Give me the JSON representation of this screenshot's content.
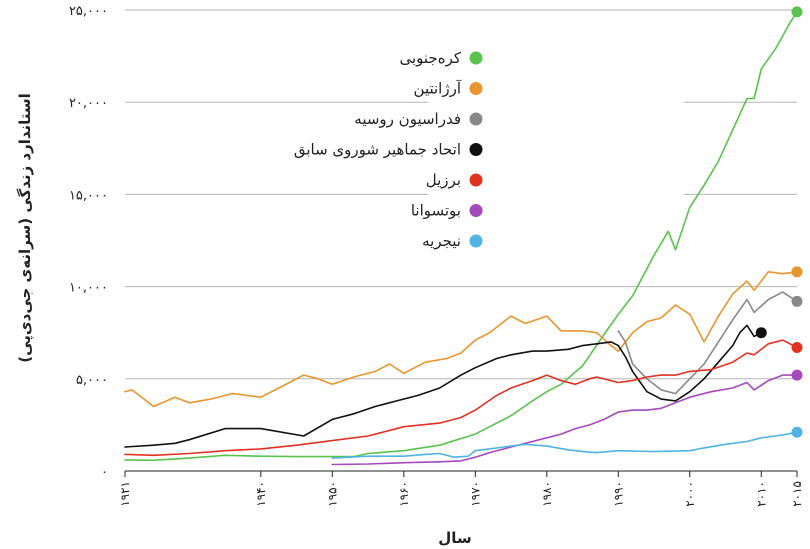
{
  "chart_data": {
    "type": "line",
    "xlabel": "سال",
    "ylabel": "استاندارد زندگی (سرانه‌ی جی‌دی‌پی)",
    "xlim": [
      1921,
      2015
    ],
    "ylim": [
      0,
      25000
    ],
    "x_ticks": [
      1921,
      1940,
      1950,
      1960,
      1970,
      1980,
      1990,
      2000,
      2010,
      2015
    ],
    "x_tick_labels": [
      "۱۹۲۱",
      "۱۹۴۰",
      "۱۹۵۰",
      "۱۹۶۰",
      "۱۹۷۰",
      "۱۹۸۰",
      "۱۹۹۰",
      "۲۰۰۰",
      "۲۰۱۰",
      "۲۰۱۵"
    ],
    "y_ticks": [
      0,
      5000,
      10000,
      15000,
      20000,
      25000
    ],
    "y_tick_labels": [
      "۰",
      "۵,۰۰۰",
      "۱۰,۰۰۰",
      "۱۵,۰۰۰",
      "۲۰,۰۰۰",
      "۲۵,۰۰۰"
    ],
    "grid": "horizontal",
    "legend_position": "top-center",
    "series": [
      {
        "name": "کره‌جنوبی",
        "color": "#5ac24e",
        "points": [
          [
            1921,
            600
          ],
          [
            1925,
            580
          ],
          [
            1930,
            700
          ],
          [
            1935,
            850
          ],
          [
            1940,
            800
          ],
          [
            1945,
            780
          ],
          [
            1950,
            780
          ],
          [
            1953,
            780
          ],
          [
            1955,
            950
          ],
          [
            1960,
            1100
          ],
          [
            1965,
            1400
          ],
          [
            1970,
            2000
          ],
          [
            1973,
            2600
          ],
          [
            1975,
            3000
          ],
          [
            1978,
            3800
          ],
          [
            1980,
            4300
          ],
          [
            1982,
            4700
          ],
          [
            1985,
            5700
          ],
          [
            1988,
            7400
          ],
          [
            1990,
            8500
          ],
          [
            1992,
            9500
          ],
          [
            1995,
            11700
          ],
          [
            1997,
            13000
          ],
          [
            1998,
            12000
          ],
          [
            2000,
            14300
          ],
          [
            2002,
            15500
          ],
          [
            2004,
            16800
          ],
          [
            2006,
            18500
          ],
          [
            2008,
            20200
          ],
          [
            2009,
            20200
          ],
          [
            2010,
            21800
          ],
          [
            2012,
            22900
          ],
          [
            2014,
            24300
          ],
          [
            2015,
            24900
          ]
        ]
      },
      {
        "name": "آرژانتین",
        "color": "#e8952f",
        "points": [
          [
            1921,
            4300
          ],
          [
            1922,
            4400
          ],
          [
            1925,
            3500
          ],
          [
            1928,
            4000
          ],
          [
            1930,
            3700
          ],
          [
            1933,
            3900
          ],
          [
            1936,
            4200
          ],
          [
            1940,
            4000
          ],
          [
            1944,
            4800
          ],
          [
            1946,
            5200
          ],
          [
            1948,
            5000
          ],
          [
            1950,
            4700
          ],
          [
            1953,
            5100
          ],
          [
            1956,
            5400
          ],
          [
            1958,
            5800
          ],
          [
            1960,
            5300
          ],
          [
            1963,
            5900
          ],
          [
            1966,
            6100
          ],
          [
            1968,
            6400
          ],
          [
            1970,
            7100
          ],
          [
            1972,
            7500
          ],
          [
            1975,
            8400
          ],
          [
            1977,
            8000
          ],
          [
            1980,
            8400
          ],
          [
            1982,
            7600
          ],
          [
            1985,
            7600
          ],
          [
            1987,
            7500
          ],
          [
            1989,
            6800
          ],
          [
            1990,
            6500
          ],
          [
            1992,
            7500
          ],
          [
            1994,
            8100
          ],
          [
            1996,
            8300
          ],
          [
            1998,
            9000
          ],
          [
            2000,
            8500
          ],
          [
            2002,
            7000
          ],
          [
            2004,
            8400
          ],
          [
            2006,
            9600
          ],
          [
            2008,
            10300
          ],
          [
            2009,
            9800
          ],
          [
            2011,
            10800
          ],
          [
            2013,
            10700
          ],
          [
            2015,
            10800
          ]
        ]
      },
      {
        "name": "فدراسیون روسیه",
        "color": "#888888",
        "points": [
          [
            1990,
            7600
          ],
          [
            1991,
            7000
          ],
          [
            1992,
            5800
          ],
          [
            1994,
            5000
          ],
          [
            1996,
            4400
          ],
          [
            1998,
            4200
          ],
          [
            2000,
            5000
          ],
          [
            2002,
            5800
          ],
          [
            2004,
            7000
          ],
          [
            2006,
            8200
          ],
          [
            2008,
            9300
          ],
          [
            2009,
            8600
          ],
          [
            2011,
            9300
          ],
          [
            2013,
            9700
          ],
          [
            2015,
            9200
          ]
        ]
      },
      {
        "name": "اتحاد جماهیر شوروی سابق",
        "color": "#111111",
        "points": [
          [
            1921,
            1300
          ],
          [
            1925,
            1400
          ],
          [
            1928,
            1500
          ],
          [
            1930,
            1700
          ],
          [
            1935,
            2300
          ],
          [
            1940,
            2300
          ],
          [
            1946,
            1900
          ],
          [
            1950,
            2800
          ],
          [
            1953,
            3100
          ],
          [
            1956,
            3500
          ],
          [
            1959,
            3800
          ],
          [
            1962,
            4100
          ],
          [
            1965,
            4500
          ],
          [
            1968,
            5200
          ],
          [
            1970,
            5600
          ],
          [
            1973,
            6100
          ],
          [
            1975,
            6300
          ],
          [
            1978,
            6500
          ],
          [
            1980,
            6500
          ],
          [
            1983,
            6600
          ],
          [
            1985,
            6800
          ],
          [
            1987,
            6900
          ],
          [
            1989,
            7000
          ],
          [
            1990,
            6800
          ],
          [
            1991,
            6200
          ],
          [
            1992,
            5400
          ],
          [
            1994,
            4300
          ],
          [
            1996,
            3900
          ],
          [
            1998,
            3800
          ],
          [
            2000,
            4300
          ],
          [
            2002,
            5000
          ],
          [
            2004,
            5900
          ],
          [
            2006,
            6800
          ],
          [
            2007,
            7500
          ],
          [
            2008,
            7900
          ],
          [
            2009,
            7300
          ],
          [
            2010,
            7500
          ]
        ]
      },
      {
        "name": "برزیل",
        "color": "#e23222",
        "points": [
          [
            1921,
            900
          ],
          [
            1925,
            850
          ],
          [
            1930,
            950
          ],
          [
            1935,
            1100
          ],
          [
            1940,
            1200
          ],
          [
            1945,
            1400
          ],
          [
            1950,
            1650
          ],
          [
            1955,
            1900
          ],
          [
            1960,
            2400
          ],
          [
            1965,
            2600
          ],
          [
            1968,
            2900
          ],
          [
            1970,
            3300
          ],
          [
            1973,
            4100
          ],
          [
            1975,
            4500
          ],
          [
            1978,
            4900
          ],
          [
            1980,
            5200
          ],
          [
            1982,
            4900
          ],
          [
            1984,
            4700
          ],
          [
            1986,
            5000
          ],
          [
            1987,
            5100
          ],
          [
            1990,
            4800
          ],
          [
            1992,
            4900
          ],
          [
            1994,
            5100
          ],
          [
            1996,
            5200
          ],
          [
            1998,
            5200
          ],
          [
            2000,
            5400
          ],
          [
            2003,
            5500
          ],
          [
            2006,
            5900
          ],
          [
            2008,
            6400
          ],
          [
            2009,
            6300
          ],
          [
            2011,
            6900
          ],
          [
            2013,
            7100
          ],
          [
            2015,
            6700
          ]
        ]
      },
      {
        "name": "بوتسوانا",
        "color": "#a54aba",
        "points": [
          [
            1950,
            350
          ],
          [
            1955,
            380
          ],
          [
            1960,
            450
          ],
          [
            1965,
            500
          ],
          [
            1968,
            550
          ],
          [
            1970,
            750
          ],
          [
            1972,
            1000
          ],
          [
            1975,
            1300
          ],
          [
            1978,
            1600
          ],
          [
            1980,
            1800
          ],
          [
            1982,
            2000
          ],
          [
            1984,
            2300
          ],
          [
            1986,
            2500
          ],
          [
            1988,
            2800
          ],
          [
            1990,
            3200
          ],
          [
            1992,
            3300
          ],
          [
            1994,
            3300
          ],
          [
            1996,
            3400
          ],
          [
            1998,
            3700
          ],
          [
            2000,
            4000
          ],
          [
            2003,
            4300
          ],
          [
            2006,
            4500
          ],
          [
            2008,
            4800
          ],
          [
            2009,
            4400
          ],
          [
            2011,
            4900
          ],
          [
            2013,
            5200
          ],
          [
            2015,
            5200
          ]
        ]
      },
      {
        "name": "نیجریه",
        "color": "#4fb3e3",
        "points": [
          [
            1950,
            700
          ],
          [
            1955,
            800
          ],
          [
            1960,
            800
          ],
          [
            1963,
            900
          ],
          [
            1965,
            950
          ],
          [
            1967,
            750
          ],
          [
            1969,
            800
          ],
          [
            1970,
            1100
          ],
          [
            1972,
            1200
          ],
          [
            1974,
            1300
          ],
          [
            1977,
            1450
          ],
          [
            1980,
            1350
          ],
          [
            1983,
            1150
          ],
          [
            1985,
            1050
          ],
          [
            1987,
            1000
          ],
          [
            1990,
            1100
          ],
          [
            1995,
            1050
          ],
          [
            2000,
            1100
          ],
          [
            2002,
            1250
          ],
          [
            2005,
            1450
          ],
          [
            2008,
            1600
          ],
          [
            2010,
            1800
          ],
          [
            2013,
            1950
          ],
          [
            2015,
            2100
          ]
        ]
      }
    ]
  }
}
